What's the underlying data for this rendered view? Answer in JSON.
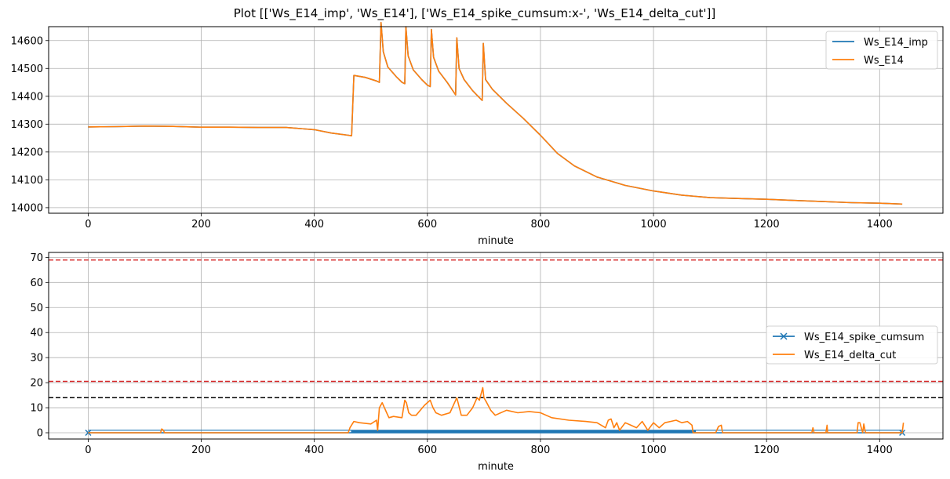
{
  "figure_title": "Plot [['Ws_E14_imp', 'Ws_E14'], ['Ws_E14_spike_cumsum:x-', 'Ws_E14_delta_cut']]",
  "colors": {
    "blue": "#1f77b4",
    "orange": "#ff7f0e",
    "red": "#d62728",
    "black": "#000000",
    "grid": "#b0b0b0"
  },
  "chart_data": [
    {
      "type": "line",
      "title": "",
      "xlabel": "minute",
      "ylabel": "",
      "xlim": [
        -70,
        1512
      ],
      "ylim": [
        13980,
        14650
      ],
      "xticks": [
        0,
        200,
        400,
        600,
        800,
        1000,
        1200,
        1400
      ],
      "yticks": [
        14000,
        14100,
        14200,
        14300,
        14400,
        14500,
        14600
      ],
      "grid": true,
      "legend": "top-right",
      "series": [
        {
          "name": "Ws_E14_imp",
          "color": "#1f77b4",
          "x": [
            0,
            50,
            100,
            150,
            200,
            250,
            300,
            350,
            400,
            430,
            460,
            466,
            470,
            490,
            510,
            515,
            518,
            522,
            530,
            545,
            555,
            560,
            562,
            566,
            575,
            590,
            600,
            605,
            607,
            611,
            620,
            635,
            645,
            650,
            652,
            656,
            665,
            680,
            692,
            697,
            699,
            703,
            715,
            740,
            770,
            800,
            830,
            860,
            900,
            950,
            1000,
            1050,
            1100,
            1150,
            1200,
            1250,
            1300,
            1350,
            1400,
            1440
          ],
          "y": [
            14290,
            14291,
            14293,
            14292,
            14289,
            14289,
            14288,
            14288,
            14280,
            14268,
            14260,
            14258,
            14475,
            14468,
            14455,
            14450,
            14665,
            14560,
            14505,
            14470,
            14450,
            14445,
            14650,
            14545,
            14495,
            14460,
            14440,
            14435,
            14640,
            14540,
            14490,
            14450,
            14420,
            14405,
            14610,
            14500,
            14460,
            14420,
            14395,
            14385,
            14590,
            14460,
            14425,
            14375,
            14320,
            14260,
            14195,
            14150,
            14110,
            14080,
            14060,
            14045,
            14036,
            14033,
            14030,
            14026,
            14022,
            14018,
            14016,
            14013
          ]
        },
        {
          "name": "Ws_E14",
          "color": "#ff7f0e",
          "x": [
            0,
            50,
            100,
            150,
            200,
            250,
            300,
            350,
            400,
            430,
            460,
            466,
            470,
            490,
            510,
            515,
            518,
            522,
            530,
            545,
            555,
            560,
            562,
            566,
            575,
            590,
            600,
            605,
            607,
            611,
            620,
            635,
            645,
            650,
            652,
            656,
            665,
            680,
            692,
            697,
            699,
            703,
            715,
            740,
            770,
            800,
            830,
            860,
            900,
            950,
            1000,
            1050,
            1100,
            1150,
            1200,
            1250,
            1300,
            1350,
            1400,
            1440
          ],
          "y": [
            14290,
            14291,
            14293,
            14292,
            14289,
            14289,
            14288,
            14288,
            14280,
            14268,
            14260,
            14258,
            14475,
            14468,
            14455,
            14450,
            14665,
            14560,
            14505,
            14470,
            14450,
            14445,
            14650,
            14545,
            14495,
            14460,
            14440,
            14435,
            14640,
            14540,
            14490,
            14450,
            14420,
            14405,
            14610,
            14500,
            14460,
            14420,
            14395,
            14385,
            14590,
            14460,
            14425,
            14375,
            14320,
            14260,
            14195,
            14150,
            14110,
            14080,
            14060,
            14045,
            14036,
            14033,
            14030,
            14026,
            14022,
            14018,
            14016,
            14013
          ]
        }
      ]
    },
    {
      "type": "line",
      "title": "",
      "xlabel": "minute",
      "ylabel": "",
      "xlim": [
        -70,
        1512
      ],
      "ylim": [
        -2.5,
        72
      ],
      "xticks": [
        0,
        200,
        400,
        600,
        800,
        1000,
        1200,
        1400
      ],
      "yticks": [
        0,
        10,
        20,
        30,
        40,
        50,
        60,
        70
      ],
      "grid": true,
      "legend": "center-right",
      "hlines": [
        {
          "y": 69,
          "color": "#d62728",
          "style": "dashed"
        },
        {
          "y": 20.5,
          "color": "#d62728",
          "style": "dashed"
        },
        {
          "y": 14,
          "color": "#000000",
          "style": "dashed"
        }
      ],
      "series": [
        {
          "name": "Ws_E14_spike_cumsum",
          "color": "#1f77b4",
          "marker": "x",
          "band": {
            "x_start": 465,
            "x_end": 1075,
            "low": 0,
            "high": 1
          },
          "x": [
            0,
            1440
          ],
          "y": [
            0,
            0
          ]
        },
        {
          "name": "Ws_E14_delta_cut",
          "color": "#ff7f0e",
          "x": [
            0,
            128,
            130,
            133,
            135,
            460,
            463,
            470,
            480,
            500,
            510,
            512,
            515,
            520,
            528,
            532,
            540,
            555,
            560,
            563,
            567,
            572,
            580,
            595,
            605,
            610,
            615,
            625,
            640,
            648,
            652,
            660,
            670,
            680,
            688,
            692,
            698,
            700,
            705,
            712,
            720,
            740,
            760,
            780,
            800,
            820,
            850,
            880,
            900,
            915,
            920,
            925,
            930,
            935,
            940,
            950,
            960,
            970,
            980,
            990,
            1000,
            1010,
            1020,
            1030,
            1040,
            1050,
            1060,
            1068,
            1070,
            1072,
            1110,
            1115,
            1120,
            1122,
            1280,
            1282,
            1284,
            1305,
            1307,
            1308,
            1360,
            1362,
            1365,
            1370,
            1372,
            1375,
            1440,
            1442
          ],
          "y": [
            0,
            0,
            1.5,
            1,
            0,
            0,
            2,
            4.5,
            4,
            3.5,
            5,
            1,
            10,
            12,
            8,
            6,
            6.5,
            6,
            13,
            12,
            8,
            7,
            7,
            11,
            13,
            10,
            8,
            7,
            8,
            12,
            14,
            7,
            7,
            10,
            14,
            13,
            18,
            14,
            12,
            9,
            7,
            9,
            8,
            8.5,
            8,
            6,
            5,
            4.5,
            4,
            2,
            5,
            5.5,
            2,
            4,
            1,
            4,
            3,
            2,
            4.5,
            1,
            4,
            2,
            4,
            4.5,
            5,
            4,
            4.5,
            3,
            0,
            0,
            0,
            2.5,
            3,
            0,
            0,
            2,
            0,
            0,
            3,
            0,
            0,
            4,
            4,
            0,
            3.5,
            0,
            0,
            4
          ]
        }
      ]
    }
  ]
}
